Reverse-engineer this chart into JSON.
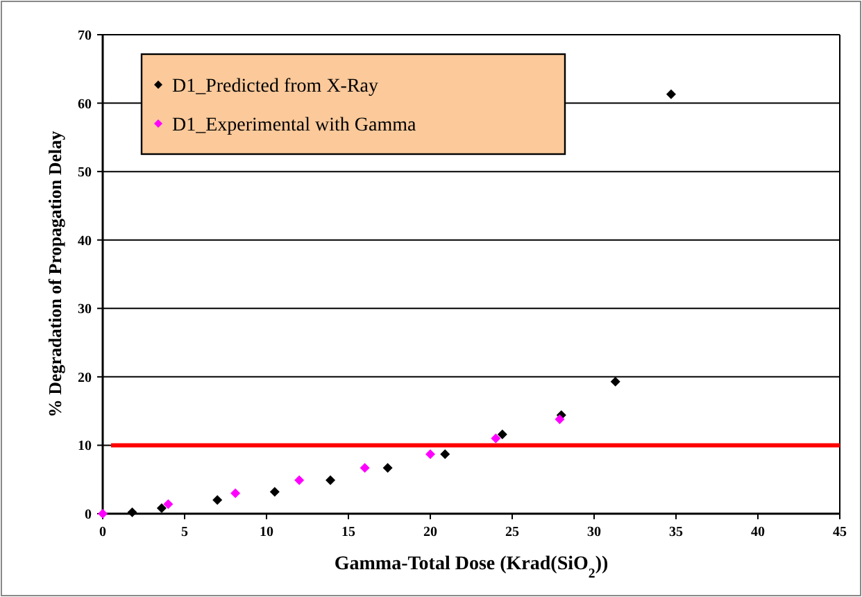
{
  "chart_data": {
    "type": "scatter",
    "xlabel": "Gamma-Total Dose (Krad(SiO$_{2}$))",
    "ylabel": "% Degradation of Propagation Delay",
    "xlim": [
      0,
      45
    ],
    "xticks": [
      0,
      5,
      10,
      15,
      20,
      25,
      30,
      35,
      40,
      45
    ],
    "ylim": [
      0,
      70
    ],
    "yticks": [
      0,
      10,
      20,
      30,
      40,
      50,
      60,
      70
    ],
    "grid": "y",
    "legend": "top left",
    "marker": "diamond",
    "series": [
      {
        "name": "D1_Predicted from X-Ray",
        "color": "#000000",
        "x": [
          1.8,
          3.6,
          7.0,
          10.5,
          13.9,
          17.4,
          20.9,
          24.4,
          28.0,
          31.3,
          34.7
        ],
        "values": [
          0.2,
          0.8,
          2.0,
          3.2,
          4.9,
          6.7,
          8.7,
          11.6,
          14.4,
          19.3,
          61.3
        ]
      },
      {
        "name": "D1_Experimental with Gamma",
        "color": "#ff00ff",
        "x": [
          0,
          4.0,
          8.1,
          12.0,
          16.0,
          20.0,
          24.0,
          27.9
        ],
        "values": [
          0,
          1.4,
          3.0,
          4.9,
          6.7,
          8.7,
          11.0,
          13.8
        ]
      }
    ],
    "ref_lines": [
      {
        "axis": "y",
        "value": 10,
        "color": "#ff0000",
        "line_style": "solid"
      }
    ]
  }
}
